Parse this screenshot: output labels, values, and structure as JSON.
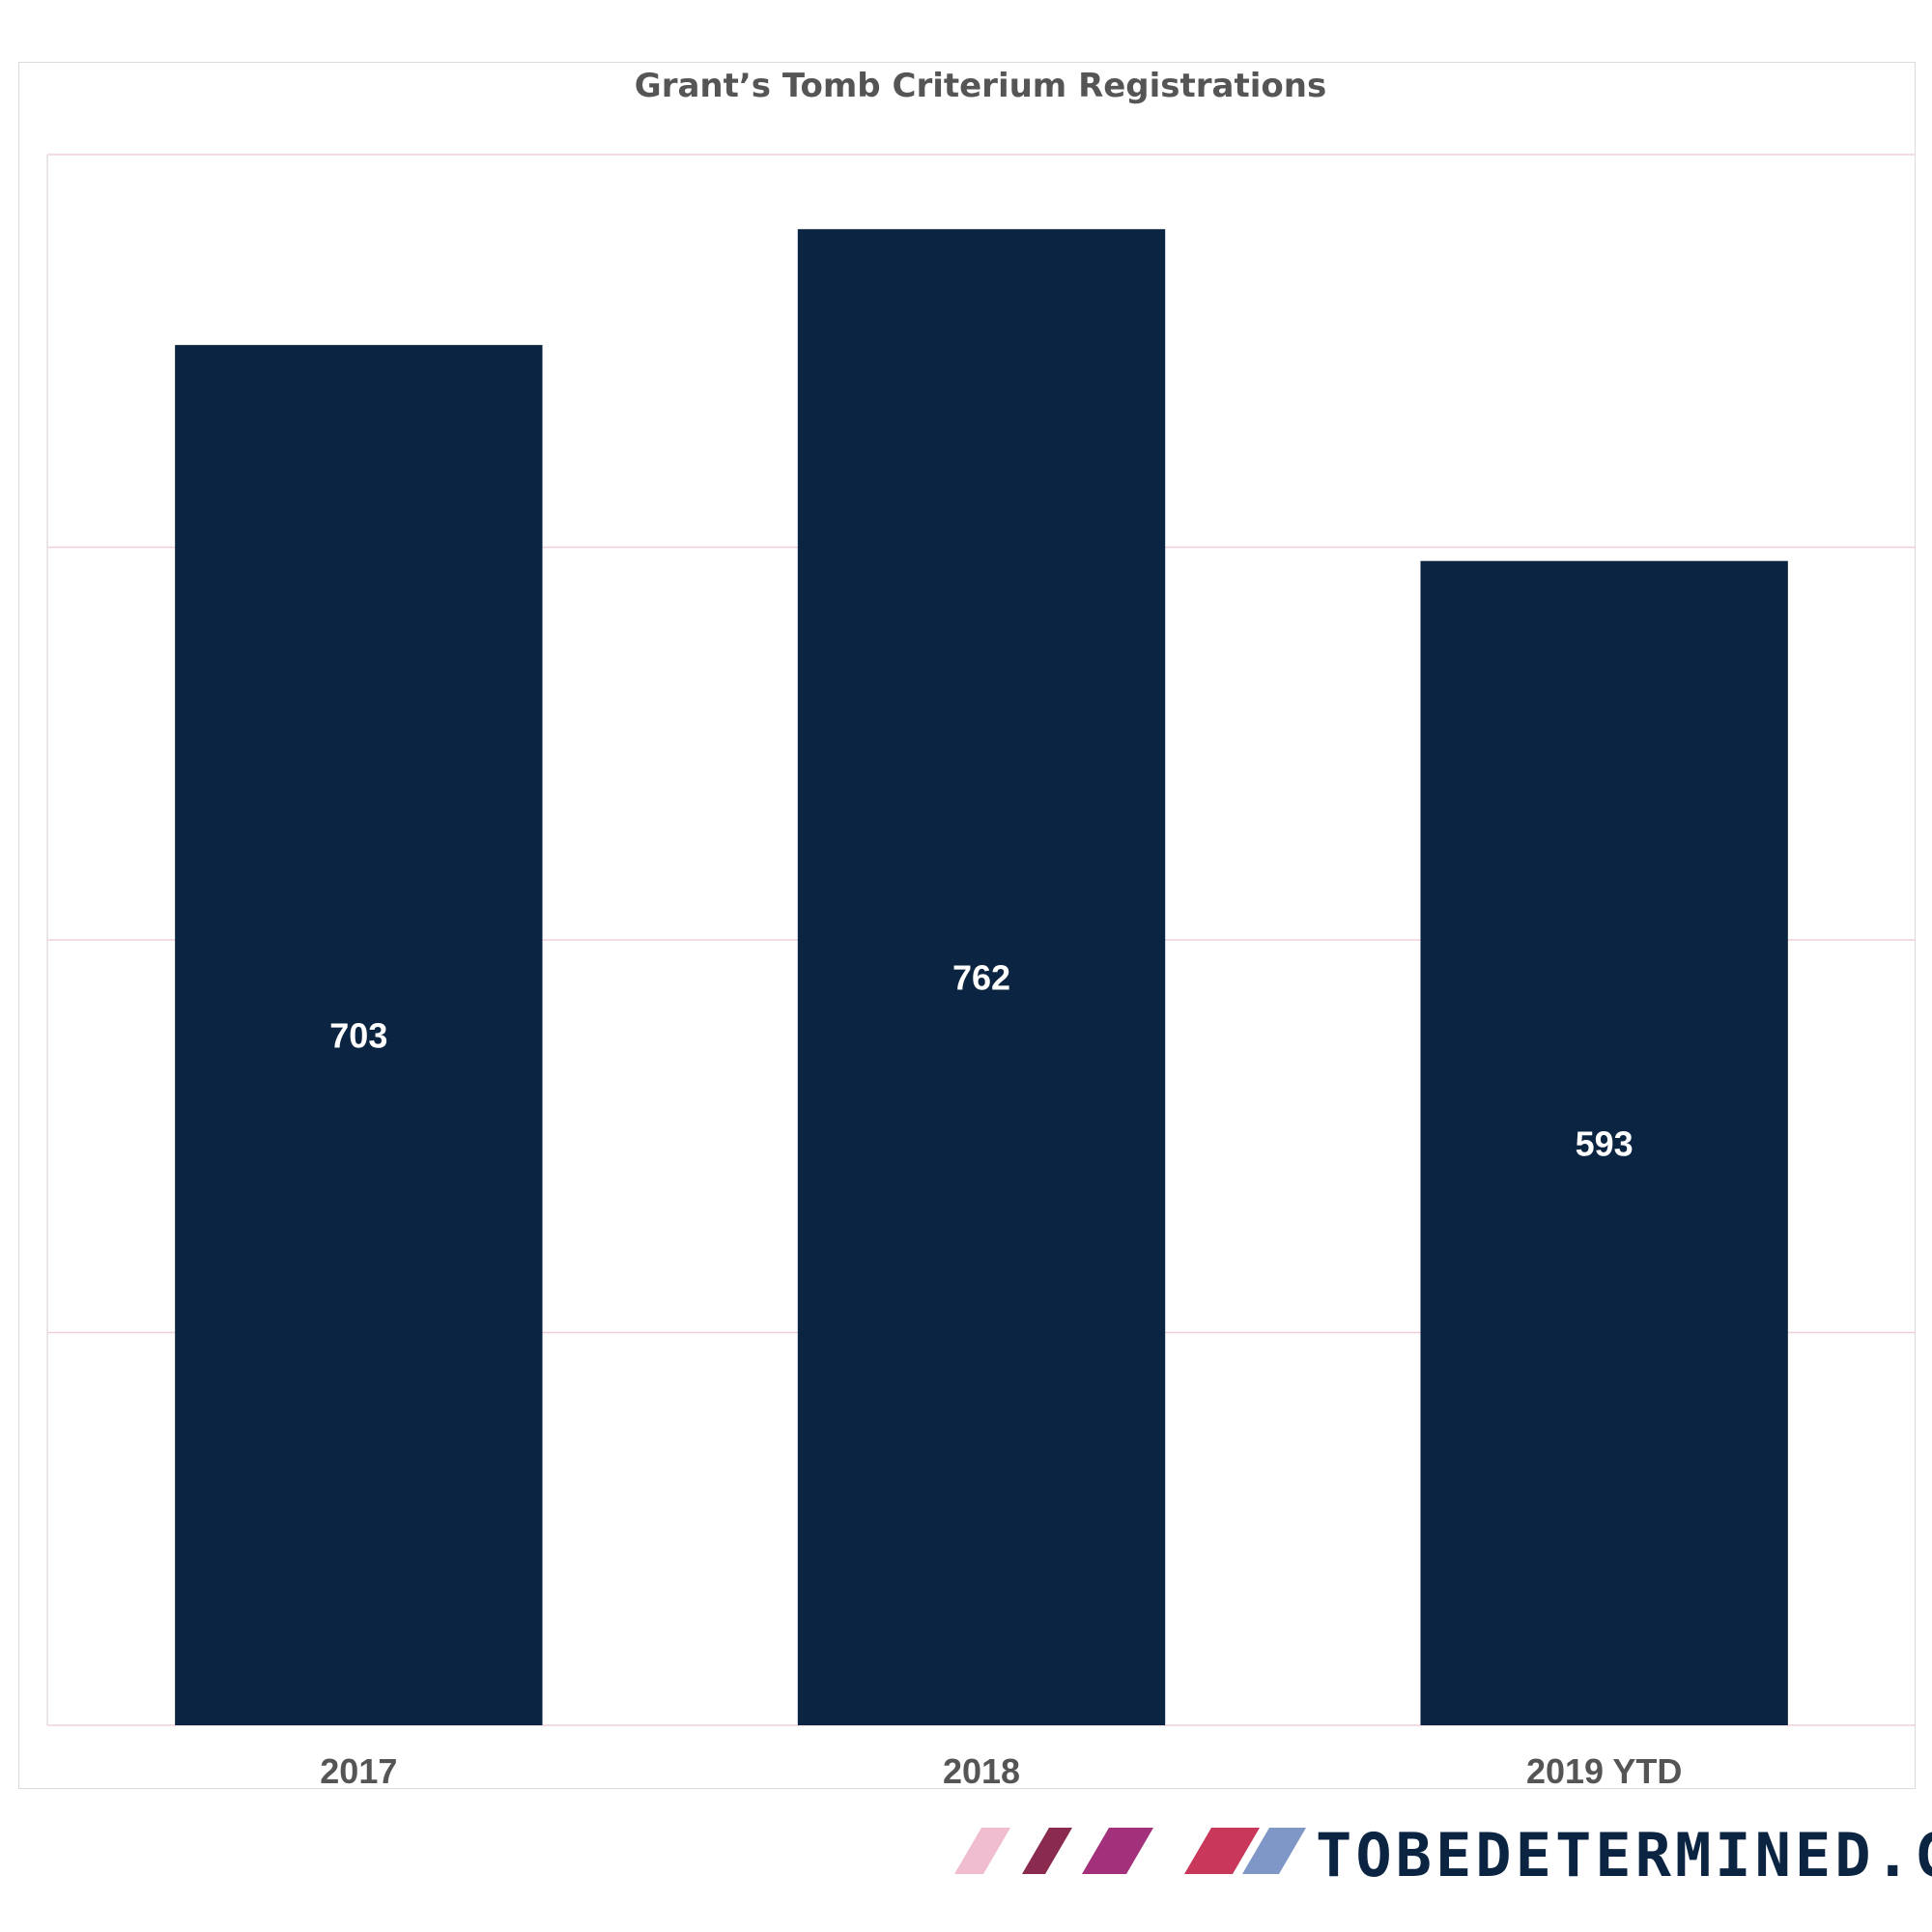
{
  "chart_data": {
    "type": "bar",
    "title": "Grant’s Tomb Criterium Registrations",
    "categories": [
      "2017",
      "2018",
      "2019 YTD"
    ],
    "values": [
      703,
      762,
      593
    ],
    "ylim": [
      0,
      800
    ],
    "gridlines": [
      0,
      200,
      400,
      600,
      800
    ],
    "grid": true,
    "legend": "none",
    "bar_color": "#0b2441",
    "data_label_color": "#ffffff",
    "gridline_color": "#f2cfd8"
  },
  "branding": {
    "text": "TOBEDETERMINED.CC",
    "stripe_colors": [
      "#f0bdd0",
      "#8a2a4f",
      "#a3307a",
      "#c9385a",
      "#7f97c6"
    ]
  }
}
